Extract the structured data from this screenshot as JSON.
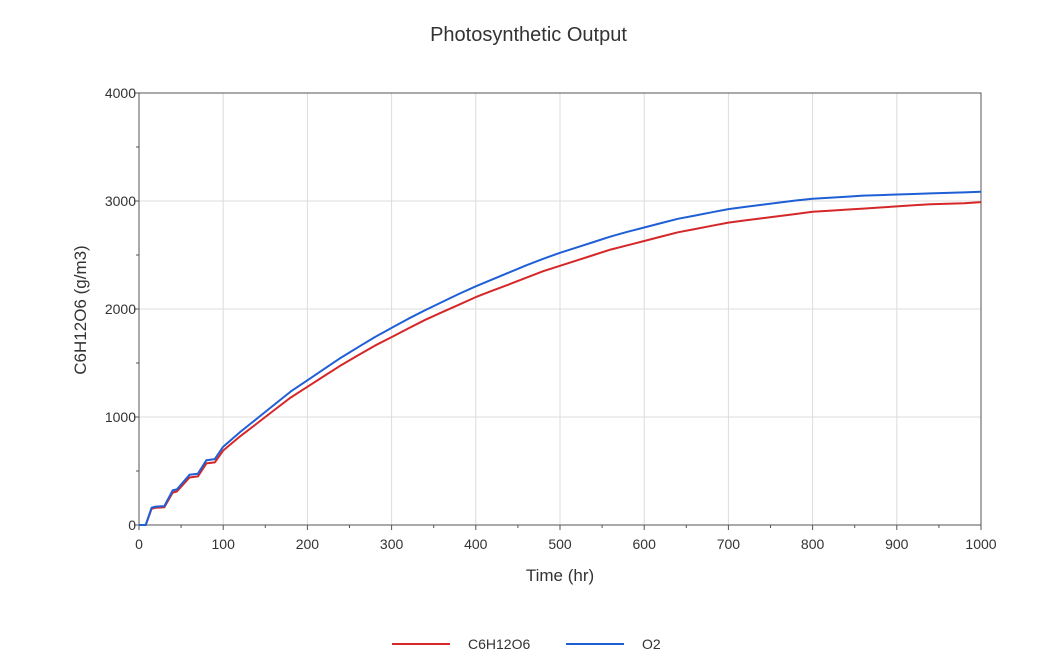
{
  "chart_data": {
    "type": "line",
    "title": "Photosynthetic Output",
    "xlabel": "Time (hr)",
    "ylabel": "C6H12O6 (g/m3)",
    "xlim": [
      0,
      1000
    ],
    "ylim": [
      0,
      4000
    ],
    "x_ticks": [
      "0",
      "100",
      "200",
      "300",
      "400",
      "500",
      "600",
      "700",
      "800",
      "900",
      "1000"
    ],
    "y_ticks": [
      "0",
      "1000",
      "2000",
      "3000",
      "4000"
    ],
    "grid": true,
    "legend_position": "bottom-center",
    "series": [
      {
        "name": "C6H12O6",
        "color": "#d62728",
        "x": [
          0,
          8,
          15,
          20,
          30,
          40,
          45,
          60,
          70,
          80,
          90,
          100,
          120,
          140,
          160,
          180,
          200,
          220,
          240,
          260,
          280,
          300,
          320,
          340,
          360,
          380,
          400,
          420,
          440,
          460,
          480,
          500,
          520,
          540,
          560,
          580,
          600,
          620,
          640,
          660,
          680,
          700,
          720,
          740,
          760,
          780,
          800,
          820,
          840,
          860,
          880,
          900,
          920,
          940,
          960,
          980,
          1000
        ],
        "values": [
          0,
          0,
          150,
          160,
          165,
          300,
          310,
          440,
          450,
          570,
          580,
          690,
          820,
          940,
          1060,
          1180,
          1280,
          1380,
          1480,
          1570,
          1660,
          1740,
          1820,
          1900,
          1970,
          2040,
          2110,
          2170,
          2230,
          2290,
          2350,
          2400,
          2450,
          2500,
          2550,
          2590,
          2630,
          2670,
          2710,
          2740,
          2770,
          2800,
          2820,
          2840,
          2860,
          2880,
          2900,
          2910,
          2920,
          2930,
          2940,
          2950,
          2960,
          2970,
          2975,
          2980,
          2990
        ]
      },
      {
        "name": "O2",
        "color": "#1f5fd6",
        "x": [
          0,
          8,
          15,
          20,
          30,
          40,
          45,
          60,
          70,
          80,
          90,
          100,
          120,
          140,
          160,
          180,
          200,
          220,
          240,
          260,
          280,
          300,
          320,
          340,
          360,
          380,
          400,
          420,
          440,
          460,
          480,
          500,
          520,
          540,
          560,
          580,
          600,
          620,
          640,
          660,
          680,
          700,
          720,
          740,
          760,
          780,
          800,
          820,
          840,
          860,
          880,
          900,
          920,
          940,
          960,
          980,
          1000
        ],
        "values": [
          0,
          0,
          160,
          170,
          175,
          320,
          330,
          465,
          475,
          600,
          610,
          725,
          860,
          985,
          1110,
          1235,
          1340,
          1445,
          1550,
          1645,
          1740,
          1825,
          1910,
          1990,
          2065,
          2140,
          2210,
          2275,
          2340,
          2405,
          2465,
          2520,
          2570,
          2620,
          2670,
          2715,
          2755,
          2795,
          2835,
          2865,
          2895,
          2925,
          2945,
          2965,
          2985,
          3005,
          3020,
          3030,
          3040,
          3050,
          3055,
          3060,
          3065,
          3070,
          3075,
          3080,
          3085
        ]
      }
    ]
  }
}
